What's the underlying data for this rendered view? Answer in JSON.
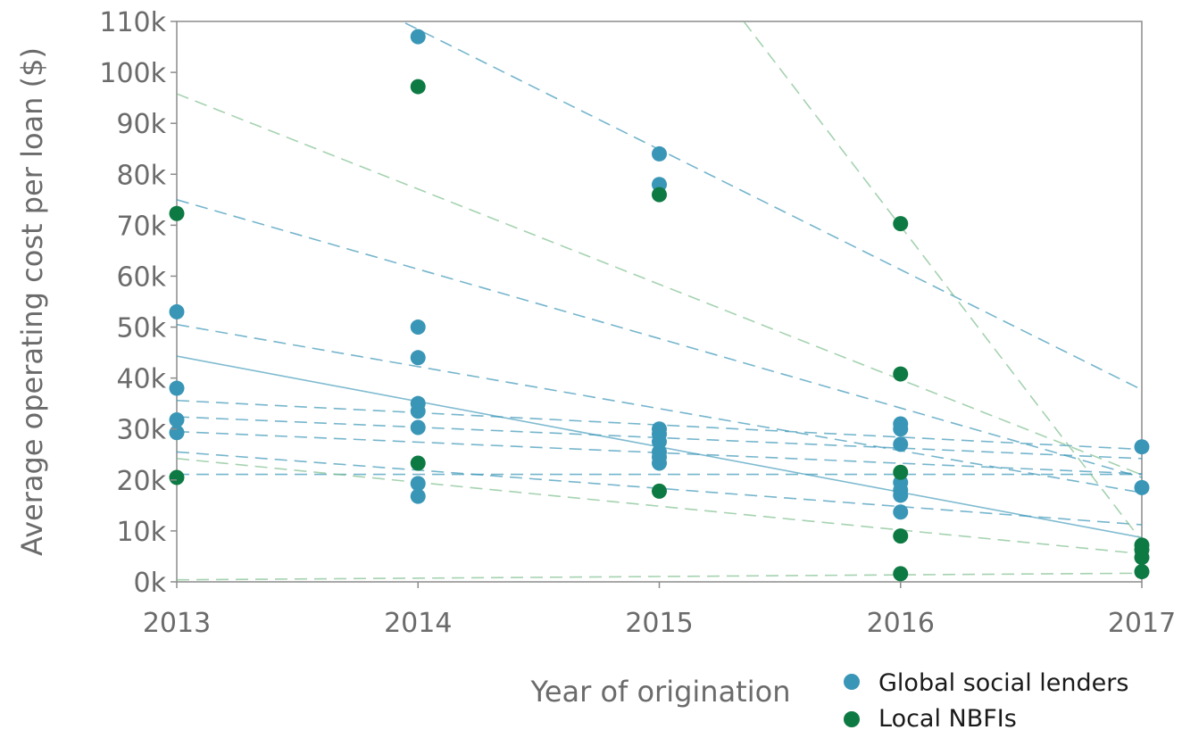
{
  "chart_data": {
    "type": "scatter",
    "title": "",
    "xlabel": "Year of origination",
    "ylabel": "Average operating cost per loan ($)",
    "x": [
      2013,
      2014,
      2015,
      2016,
      2017
    ],
    "x_tick_labels": [
      "2013",
      "2014",
      "2015",
      "2016",
      "2017"
    ],
    "ylim": [
      0,
      110000
    ],
    "y_ticks": [
      0,
      10000,
      20000,
      30000,
      40000,
      50000,
      60000,
      70000,
      80000,
      90000,
      100000,
      110000
    ],
    "y_tick_labels": [
      "0k",
      "10k",
      "20k",
      "30k",
      "40k",
      "50k",
      "60k",
      "70k",
      "80k",
      "90k",
      "100k",
      "110k"
    ],
    "grid": false,
    "legend_position": "bottom-right",
    "series": [
      {
        "name": "Global social lenders",
        "color": "#3a96b7",
        "points": [
          {
            "x": 2013,
            "y": 53000
          },
          {
            "x": 2013,
            "y": 38000
          },
          {
            "x": 2013,
            "y": 31800
          },
          {
            "x": 2013,
            "y": 29300
          },
          {
            "x": 2014,
            "y": 107000
          },
          {
            "x": 2014,
            "y": 50000
          },
          {
            "x": 2014,
            "y": 44000
          },
          {
            "x": 2014,
            "y": 35000
          },
          {
            "x": 2014,
            "y": 33500
          },
          {
            "x": 2014,
            "y": 30300
          },
          {
            "x": 2014,
            "y": 19300
          },
          {
            "x": 2014,
            "y": 16800
          },
          {
            "x": 2015,
            "y": 84000
          },
          {
            "x": 2015,
            "y": 78000
          },
          {
            "x": 2015,
            "y": 30000
          },
          {
            "x": 2015,
            "y": 29000
          },
          {
            "x": 2015,
            "y": 27500
          },
          {
            "x": 2015,
            "y": 25500
          },
          {
            "x": 2015,
            "y": 24500
          },
          {
            "x": 2015,
            "y": 23300
          },
          {
            "x": 2016,
            "y": 31000
          },
          {
            "x": 2016,
            "y": 30000
          },
          {
            "x": 2016,
            "y": 27000
          },
          {
            "x": 2016,
            "y": 19500
          },
          {
            "x": 2016,
            "y": 18000
          },
          {
            "x": 2016,
            "y": 17000
          },
          {
            "x": 2016,
            "y": 13700
          },
          {
            "x": 2017,
            "y": 26500
          },
          {
            "x": 2017,
            "y": 18500
          }
        ]
      },
      {
        "name": "Local NBFIs",
        "color": "#0e7a43",
        "points": [
          {
            "x": 2013,
            "y": 72300
          },
          {
            "x": 2013,
            "y": 20500
          },
          {
            "x": 2014,
            "y": 97200
          },
          {
            "x": 2014,
            "y": 23300
          },
          {
            "x": 2015,
            "y": 76000
          },
          {
            "x": 2015,
            "y": 17800
          },
          {
            "x": 2016,
            "y": 70300
          },
          {
            "x": 2016,
            "y": 40800
          },
          {
            "x": 2016,
            "y": 21500
          },
          {
            "x": 2016,
            "y": 9000
          },
          {
            "x": 2016,
            "y": 1600
          },
          {
            "x": 2017,
            "y": 7200
          },
          {
            "x": 2017,
            "y": 6300
          },
          {
            "x": 2017,
            "y": 4800
          },
          {
            "x": 2017,
            "y": 2000
          }
        ]
      }
    ],
    "trend_lines": [
      {
        "color": "#3a96b7",
        "dash": "solid",
        "x": [
          2013,
          2017
        ],
        "y": [
          44300,
          8700
        ]
      },
      {
        "color": "#3a96b7",
        "dash": "dashed",
        "x": [
          2013,
          2017
        ],
        "y": [
          132000,
          37700
        ]
      },
      {
        "color": "#3a96b7",
        "dash": "dashed",
        "x": [
          2013,
          2017
        ],
        "y": [
          75000,
          20500
        ]
      },
      {
        "color": "#3a96b7",
        "dash": "dashed",
        "x": [
          2013,
          2017
        ],
        "y": [
          50500,
          17500
        ]
      },
      {
        "color": "#3a96b7",
        "dash": "dashed",
        "x": [
          2013,
          2017
        ],
        "y": [
          35600,
          26000
        ]
      },
      {
        "color": "#3a96b7",
        "dash": "dashed",
        "x": [
          2013,
          2017
        ],
        "y": [
          32400,
          24200
        ]
      },
      {
        "color": "#3a96b7",
        "dash": "dashed",
        "x": [
          2013,
          2017
        ],
        "y": [
          29500,
          21200
        ]
      },
      {
        "color": "#3a96b7",
        "dash": "dashed",
        "x": [
          2013,
          2017
        ],
        "y": [
          25500,
          11200
        ]
      },
      {
        "color": "#3a96b7",
        "dash": "dashed",
        "x": [
          2013,
          2017
        ],
        "y": [
          21100,
          21100
        ]
      },
      {
        "color": "#7fbf8f",
        "dash": "dashed",
        "x": [
          2013,
          2017
        ],
        "y": [
          95800,
          21000
        ]
      },
      {
        "color": "#7fbf8f",
        "dash": "dashed",
        "x": [
          2015.35,
          2017
        ],
        "y": [
          110000,
          8000
        ]
      },
      {
        "color": "#7fbf8f",
        "dash": "dashed",
        "x": [
          2013,
          2017
        ],
        "y": [
          24200,
          5500
        ]
      },
      {
        "color": "#7fbf8f",
        "dash": "dashed",
        "x": [
          2013,
          2017
        ],
        "y": [
          400,
          1700
        ]
      }
    ]
  }
}
